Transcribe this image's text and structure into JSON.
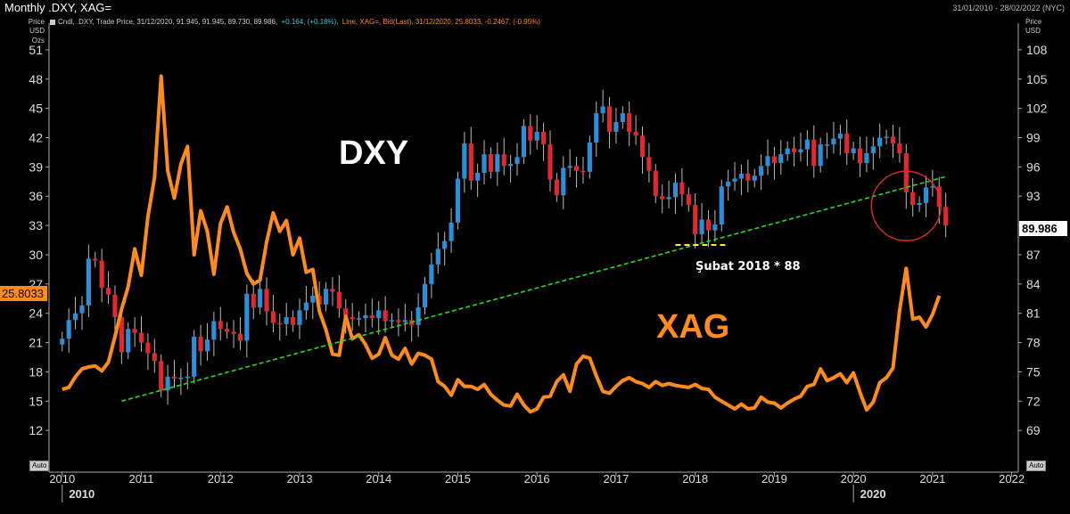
{
  "window": {
    "title": "Monthly .DXY, XAG=",
    "date_range": "31/01/2010 - 28/02/2022 (NYC)"
  },
  "legend": {
    "dxy_prefix": "Cndl, .DXY, Trade Price, 31/12/2020, 91.945, 91.945, 89.730, 89.986,",
    "dxy_change": "+0.164, (+0.18%),",
    "xag_text": "Line, XAG=, Bid(Last), 31/12/2020, 25.8033, -0.2467, (-0.95%)"
  },
  "left_axis_unit": [
    "Price",
    "USD",
    "Ozs"
  ],
  "right_axis_unit": [
    "Price",
    "USD"
  ],
  "auto_label": "Auto",
  "colors": {
    "bull": "#2a8fd6",
    "bear": "#e0282e",
    "silver_line": "#ff8c1a",
    "trendline": "#22dd22",
    "support_dash": "#ffee33",
    "circle": "#e0282e"
  },
  "annotations": {
    "dxy_label": "DXY",
    "xag_label": "XAG",
    "support_note": "Şubat 2018 * 88",
    "dxy_last": "89.986",
    "xag_last": "25.8033"
  },
  "chart_data": {
    "type": "candlestick+line",
    "x_range": [
      "2009-11",
      "2022-02"
    ],
    "x_ticks": [
      "2010",
      "2011",
      "2012",
      "2013",
      "2014",
      "2015",
      "2016",
      "2017",
      "2018",
      "2019",
      "2020",
      "2021",
      "2022"
    ],
    "x_major_labels": [
      "2010",
      "2020"
    ],
    "left_axis": {
      "series": "XAG",
      "ylim": [
        9,
        53
      ],
      "ticks": [
        12,
        15,
        18,
        21,
        24,
        27,
        30,
        33,
        36,
        39,
        42,
        45,
        48,
        51
      ]
    },
    "right_axis": {
      "series": "DXY",
      "ylim": [
        66,
        110
      ],
      "ticks": [
        69,
        72,
        75,
        78,
        81,
        84,
        87,
        90,
        93,
        96,
        99,
        102,
        105,
        108
      ]
    },
    "dxy_monthly_close": [
      78.4,
      80.3,
      81.0,
      81.8,
      86.6,
      86.4,
      83.6,
      82.9,
      80.6,
      77.0,
      79.4,
      79.0,
      78.0,
      76.9,
      76.1,
      73.1,
      74.5,
      74.3,
      74.4,
      74.5,
      78.6,
      77.1,
      78.3,
      80.2,
      79.4,
      79.1,
      78.9,
      78.2,
      83.0,
      81.6,
      83.5,
      81.2,
      80.0,
      79.9,
      80.6,
      79.8,
      81.3,
      82.1,
      82.8,
      81.9,
      83.5,
      83.2,
      81.5,
      80.6,
      80.4,
      80.5,
      80.8,
      80.5,
      81.3,
      80.2,
      80.3,
      80.1,
      80.3,
      79.8,
      81.6,
      84.0,
      86.0,
      87.6,
      88.4,
      90.3,
      94.8,
      98.4,
      94.6,
      95.4,
      97.3,
      95.5,
      97.3,
      96.1,
      96.3,
      97.0,
      100.2,
      98.7,
      99.6,
      98.3,
      94.7,
      93.1,
      95.9,
      96.1,
      95.6,
      95.5,
      98.5,
      101.5,
      102.2,
      99.6,
      100.6,
      101.5,
      99.6,
      99.2,
      97.0,
      95.6,
      93.0,
      92.7,
      92.9,
      94.4,
      93.2,
      92.1,
      89.1,
      90.6,
      89.5,
      90.1,
      94.0,
      94.5,
      94.8,
      95.3,
      94.6,
      95.1,
      96.1,
      97.1,
      96.4,
      97.3,
      97.9,
      97.5,
      97.8,
      98.8,
      96.1,
      98.3,
      98.3,
      98.9,
      99.4,
      97.4,
      97.9,
      96.4,
      97.4,
      98.1,
      99.0,
      99.1,
      98.4,
      97.4,
      93.4,
      92.1,
      92.3,
      93.9,
      94.0,
      91.9,
      89.986
    ],
    "xag_monthly": [
      16.2,
      16.4,
      17.5,
      18.3,
      18.5,
      18.6,
      18.1,
      19.0,
      21.6,
      24.4,
      26.7,
      30.6,
      27.9,
      33.9,
      37.9,
      48.3,
      38.6,
      35.8,
      39.3,
      41.1,
      30.0,
      34.5,
      32.4,
      28.0,
      33.2,
      34.9,
      32.3,
      30.6,
      28.1,
      27.0,
      27.4,
      31.3,
      34.3,
      32.4,
      33.5,
      30.0,
      31.7,
      28.2,
      28.5,
      24.2,
      22.3,
      19.8,
      19.7,
      23.7,
      21.4,
      21.8,
      20.8,
      19.4,
      19.8,
      21.5,
      19.7,
      19.3,
      20.4,
      18.8,
      19.9,
      19.7,
      19.3,
      17.0,
      16.5,
      15.6,
      17.2,
      16.5,
      16.5,
      16.2,
      16.7,
      15.7,
      15.1,
      14.6,
      14.5,
      15.7,
      14.6,
      13.9,
      14.2,
      15.4,
      15.5,
      17.0,
      17.7,
      16.0,
      18.8,
      19.6,
      19.4,
      17.6,
      16.0,
      15.8,
      16.5,
      17.1,
      17.4,
      17.0,
      16.8,
      16.4,
      17.0,
      16.6,
      16.8,
      16.6,
      16.5,
      16.4,
      16.7,
      16.3,
      16.2,
      15.4,
      15.0,
      14.6,
      14.2,
      14.7,
      14.2,
      14.3,
      15.4,
      14.9,
      14.8,
      14.3,
      14.8,
      15.2,
      15.5,
      16.5,
      16.7,
      18.3,
      17.1,
      17.4,
      17.8,
      16.9,
      17.9,
      15.9,
      14.1,
      14.9,
      16.9,
      17.4,
      18.4,
      24.3,
      28.6,
      23.4,
      23.6,
      22.6,
      23.9,
      25.8033
    ],
    "trendline": [
      {
        "date": "2010-10",
        "value": 72.0
      },
      {
        "date": "2021-03",
        "value": 95.0
      }
    ],
    "support_line": {
      "from": "2017-10",
      "to": "2018-06",
      "value": 88.0
    },
    "yaxis_left_label": "Price USD Ozs",
    "yaxis_right_label": "Price USD"
  }
}
